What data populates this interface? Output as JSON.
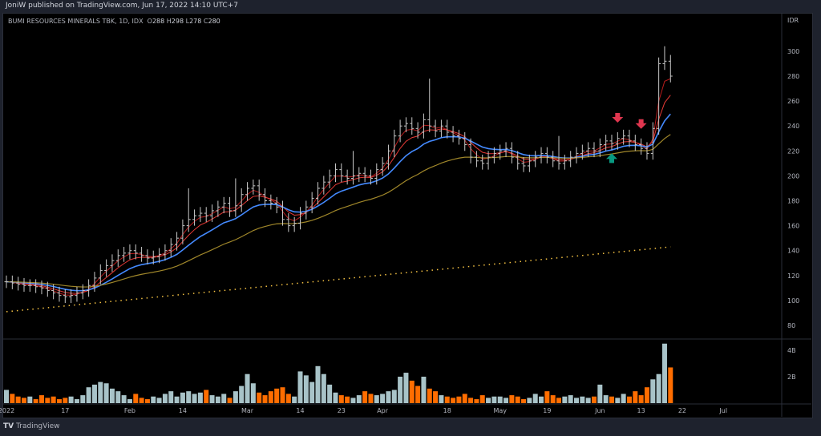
{
  "header": {
    "published": "JoniW published on TradingView.com, Jun 17, 2022 14:10 UTC+7"
  },
  "legend": {
    "symbol": "BUMI RESOURCES MINERALS TBK, 1D, IDX",
    "o_label": "O",
    "o": "288",
    "h_label": "H",
    "h": "298",
    "l_label": "L",
    "l": "278",
    "c_label": "C",
    "c": "280"
  },
  "footer": {
    "logo_mark": "TV",
    "brand": "TradingView"
  },
  "colors": {
    "up": "#a8c3c8",
    "down": "#ff6d00",
    "ma_fast": "#b71c1c",
    "ma_mid": "#e53935",
    "ma_blue": "#448aff",
    "ma_slow": "#a0872a",
    "ma_dotted": "#f6c343",
    "arrow_down": "#e0364f",
    "arrow_up": "#089981"
  },
  "chart_data": {
    "type": "ohlc",
    "currency": "IDR",
    "price_ticks": [
      "300",
      "280",
      "260",
      "240",
      "220",
      "200",
      "180",
      "160",
      "140",
      "120",
      "100",
      "80"
    ],
    "price_range": [
      68,
      318
    ],
    "volume_ticks": [
      "4B",
      "2B"
    ],
    "x_labels": [
      {
        "i": 0,
        "t": "2022"
      },
      {
        "i": 10,
        "t": "17"
      },
      {
        "i": 21,
        "t": "Feb"
      },
      {
        "i": 30,
        "t": "14"
      },
      {
        "i": 41,
        "t": "Mar"
      },
      {
        "i": 50,
        "t": "14"
      },
      {
        "i": 57,
        "t": "23"
      },
      {
        "i": 64,
        "t": "Apr"
      },
      {
        "i": 75,
        "t": "18"
      },
      {
        "i": 84,
        "t": "May"
      },
      {
        "i": 92,
        "t": "19"
      },
      {
        "i": 101,
        "t": "Jun"
      },
      {
        "i": 108,
        "t": "13"
      },
      {
        "i": 115,
        "t": "22"
      },
      {
        "i": 122,
        "t": "Jul"
      }
    ],
    "close": [
      115,
      114,
      113,
      112,
      112,
      111,
      110,
      108,
      106,
      104,
      103,
      104,
      106,
      108,
      112,
      118,
      124,
      128,
      132,
      136,
      138,
      140,
      138,
      136,
      134,
      135,
      137,
      140,
      145,
      150,
      160,
      165,
      168,
      170,
      168,
      172,
      175,
      178,
      172,
      176,
      185,
      190,
      192,
      185,
      180,
      178,
      175,
      165,
      160,
      162,
      170,
      175,
      182,
      190,
      195,
      200,
      205,
      200,
      198,
      200,
      202,
      200,
      198,
      205,
      210,
      220,
      232,
      240,
      242,
      238,
      235,
      245,
      240,
      236,
      240,
      235,
      232,
      230,
      225,
      215,
      212,
      210,
      215,
      218,
      220,
      222,
      215,
      210,
      208,
      212,
      215,
      218,
      215,
      212,
      210,
      212,
      215,
      218,
      220,
      222,
      220,
      225,
      228,
      226,
      230,
      232,
      228,
      225,
      222,
      218,
      238,
      290,
      292,
      280
    ],
    "volume_b": [
      1.0,
      0.7,
      0.5,
      0.4,
      0.5,
      0.3,
      0.6,
      0.4,
      0.5,
      0.3,
      0.4,
      0.5,
      0.3,
      0.6,
      1.2,
      1.4,
      1.6,
      1.5,
      1.1,
      0.9,
      0.6,
      0.3,
      0.7,
      0.4,
      0.3,
      0.5,
      0.4,
      0.7,
      0.9,
      0.5,
      0.8,
      0.9,
      0.7,
      0.8,
      1.0,
      0.6,
      0.5,
      0.7,
      0.4,
      0.9,
      1.3,
      2.2,
      1.5,
      0.8,
      0.6,
      0.9,
      1.1,
      1.2,
      0.7,
      0.5,
      2.4,
      2.1,
      1.6,
      2.8,
      2.2,
      1.4,
      0.8,
      0.6,
      0.5,
      0.4,
      0.6,
      0.9,
      0.7,
      0.6,
      0.7,
      0.9,
      1.0,
      2.0,
      2.3,
      1.7,
      1.3,
      2.0,
      1.1,
      0.9,
      0.6,
      0.5,
      0.4,
      0.5,
      0.7,
      0.4,
      0.3,
      0.6,
      0.4,
      0.5,
      0.5,
      0.4,
      0.6,
      0.5,
      0.3,
      0.4,
      0.7,
      0.5,
      0.9,
      0.6,
      0.4,
      0.5,
      0.6,
      0.4,
      0.5,
      0.4,
      0.5,
      1.4,
      0.6,
      0.5,
      0.4,
      0.7,
      0.5,
      0.9,
      0.6,
      1.2,
      1.8,
      2.2,
      4.5,
      2.7
    ],
    "wicks": [
      {
        "i": 31,
        "h": 190
      },
      {
        "i": 39,
        "h": 198
      },
      {
        "i": 59,
        "h": 220
      },
      {
        "i": 72,
        "h": 278
      },
      {
        "i": 94,
        "h": 232
      },
      {
        "i": 112,
        "h": 304
      }
    ],
    "ma200": [
      91,
      143
    ],
    "markers": [
      {
        "i": 104,
        "type": "arrow-down"
      },
      {
        "i": 108,
        "type": "arrow-down"
      },
      {
        "i": 103,
        "type": "arrow-up"
      }
    ]
  }
}
